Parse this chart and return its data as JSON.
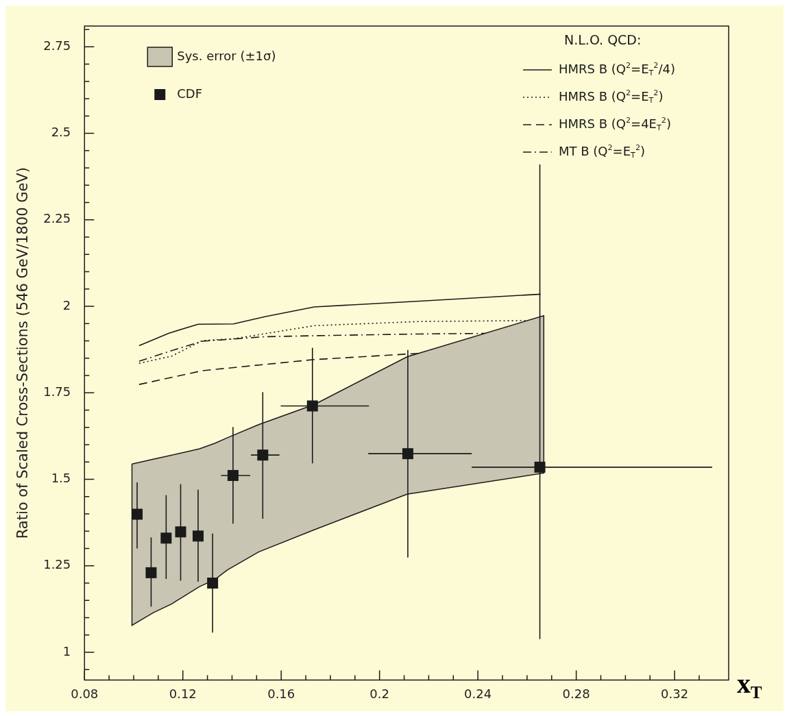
{
  "chart_data": {
    "type": "scatter",
    "ylabel": "Ratio of Scaled Cross-Sections (546 GeV/1800 GeV)",
    "xlabel": "x$_{T}$",
    "legend_title": "N.L.O. QCD:",
    "legend": "top",
    "xlim": [
      0.08,
      0.342
    ],
    "ylim": [
      0.92,
      2.81
    ],
    "xticks": [
      0.08,
      {
        "value": 0.09,
        "label": null
      },
      {
        "value": 0.1,
        "label": null
      },
      {
        "value": 0.11,
        "label": null
      },
      0.12,
      {
        "value": 0.13,
        "label": null
      },
      {
        "value": 0.14,
        "label": null
      },
      {
        "value": 0.15,
        "label": null
      },
      0.16,
      {
        "value": 0.17,
        "label": null
      },
      {
        "value": 0.18,
        "label": null
      },
      {
        "value": 0.19,
        "label": null
      },
      0.2,
      {
        "value": 0.21,
        "label": null
      },
      {
        "value": 0.22,
        "label": null
      },
      {
        "value": 0.23,
        "label": null
      },
      0.24,
      {
        "value": 0.25,
        "label": null
      },
      {
        "value": 0.26,
        "label": null
      },
      {
        "value": 0.27,
        "label": null
      },
      0.28,
      {
        "value": 0.29,
        "label": null
      },
      {
        "value": 0.3,
        "label": null
      },
      {
        "value": 0.31,
        "label": null
      },
      0.32,
      {
        "value": 0.33,
        "label": null
      }
    ],
    "yticks": [
      {
        "value": 0.95,
        "label": null
      },
      1,
      {
        "value": 1.05,
        "label": null
      },
      {
        "value": 1.1,
        "label": null
      },
      {
        "value": 1.15,
        "label": null
      },
      {
        "value": 1.2,
        "label": null
      },
      1.25,
      {
        "value": 1.3,
        "label": null
      },
      {
        "value": 1.35,
        "label": null
      },
      {
        "value": 1.4,
        "label": null
      },
      {
        "value": 1.45,
        "label": null
      },
      1.5,
      {
        "value": 1.55,
        "label": null
      },
      {
        "value": 1.6,
        "label": null
      },
      {
        "value": 1.65,
        "label": null
      },
      {
        "value": 1.7,
        "label": null
      },
      1.75,
      {
        "value": 1.8,
        "label": null
      },
      {
        "value": 1.85,
        "label": null
      },
      {
        "value": 1.9,
        "label": null
      },
      {
        "value": 1.95,
        "label": null
      },
      2,
      {
        "value": 2.05,
        "label": null
      },
      {
        "value": 2.1,
        "label": null
      },
      {
        "value": 2.15,
        "label": null
      },
      {
        "value": 2.2,
        "label": null
      },
      2.25,
      {
        "value": 2.3,
        "label": null
      },
      {
        "value": 2.35,
        "label": null
      },
      {
        "value": 2.4,
        "label": null
      },
      {
        "value": 2.45,
        "label": null
      },
      2.5,
      {
        "value": 2.55,
        "label": null
      },
      {
        "value": 2.6,
        "label": null
      },
      {
        "value": 2.65,
        "label": null
      },
      {
        "value": 2.7,
        "label": null
      },
      2.75,
      {
        "value": 2.8,
        "label": null
      }
    ],
    "series": [
      {
        "name": "Sys. error (±1σ)",
        "type": "area",
        "color": "#c9c5b3",
        "x": [
          0.0993,
          0.1079,
          0.1155,
          0.1268,
          0.133,
          0.1381,
          0.1508,
          0.1734,
          0.2112,
          0.2668
        ],
        "values": [
          null,
          null,
          null,
          null,
          null,
          null,
          null,
          null,
          null,
          null
        ],
        "lower": [
          1.078,
          1.114,
          1.14,
          1.19,
          1.21,
          1.238,
          1.29,
          1.354,
          1.457,
          1.518
        ],
        "upper": [
          1.544,
          1.558,
          1.57,
          1.588,
          1.604,
          1.62,
          1.658,
          1.716,
          1.854,
          1.973
        ]
      },
      {
        "name": "HMRS B (Q$^{2}$=E$_{T}$$^{2}$/4)",
        "type": "line",
        "line_style": "solid",
        "color": "#1a1a1a",
        "marker": "none",
        "x": [
          0.1022,
          0.1142,
          0.1262,
          0.1406,
          0.1533,
          0.1734,
          0.2163,
          0.2655
        ],
        "values": [
          1.886,
          1.922,
          1.948,
          1.949,
          1.97,
          1.998,
          2.015,
          2.035
        ]
      },
      {
        "name": "HMRS B (Q$^{2}$=E$_{T}$$^{2}$)",
        "type": "line",
        "line_style": "dotted",
        "color": "#1a1a1a",
        "marker": "none",
        "x": [
          0.1022,
          0.1155,
          0.128,
          0.1406,
          0.1734,
          0.2163,
          0.2655
        ],
        "values": [
          1.835,
          1.856,
          1.901,
          1.906,
          1.944,
          1.956,
          1.959
        ]
      },
      {
        "name": "HMRS B (Q$^{2}$=4E$_{T}$$^{2}$)",
        "type": "line",
        "line_style": "dashed",
        "color": "#1a1a1a",
        "marker": "none",
        "x": [
          0.1022,
          0.128,
          0.1734,
          0.2163,
          0.2655
        ],
        "values": [
          1.774,
          1.814,
          1.846,
          1.864,
          1.886
        ]
      },
      {
        "name": "MT B (Q$^{2}$=E$_{T}$$^{2}$)",
        "type": "line",
        "line_style": "dashdot",
        "color": "#1a1a1a",
        "marker": "none",
        "x": [
          0.1022,
          0.1155,
          0.128,
          0.1533,
          0.1734,
          0.2163,
          0.2655
        ],
        "values": [
          1.841,
          1.872,
          1.899,
          1.912,
          1.915,
          1.92,
          1.923
        ]
      },
      {
        "name": "CDF",
        "type": "scatter",
        "color": "#1a1a1a",
        "marker": "square",
        "x": [
          0.1014,
          0.1071,
          0.1132,
          0.1191,
          0.1262,
          0.1321,
          0.1404,
          0.1525,
          0.1727,
          0.2115,
          0.2652
        ],
        "values": [
          1.399,
          1.23,
          1.33,
          1.348,
          1.336,
          1.2,
          1.511,
          1.57,
          1.712,
          1.574,
          1.535
        ],
        "errors": [
          [
            1.3,
            1.491
          ],
          [
            1.132,
            1.332
          ],
          [
            1.212,
            1.454
          ],
          [
            1.207,
            1.486
          ],
          [
            1.204,
            1.47
          ],
          [
            1.057,
            1.343
          ],
          [
            1.372,
            1.651
          ],
          [
            1.386,
            1.752
          ],
          [
            1.546,
            1.88
          ],
          [
            1.274,
            1.874
          ],
          [
            1.038,
            2.41
          ]
        ],
        "xerrors": [
          null,
          null,
          null,
          null,
          null,
          null,
          [
            0.1355,
            0.1474
          ],
          [
            0.1477,
            0.1593
          ],
          [
            0.1598,
            0.1957
          ],
          [
            0.1954,
            0.2375
          ],
          [
            0.2375,
            0.3353
          ]
        ]
      }
    ]
  }
}
